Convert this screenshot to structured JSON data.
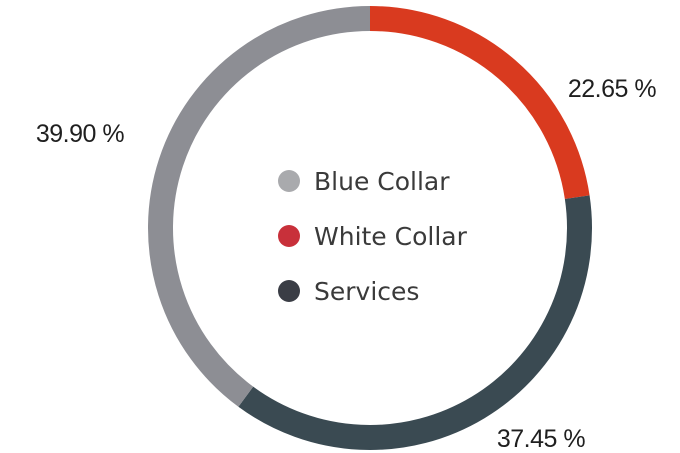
{
  "chart_data": {
    "type": "pie",
    "style": "donut",
    "legend_position": "center",
    "series": [
      {
        "name": "Blue Collar",
        "value": 39.9,
        "label": "39.90 %",
        "color": "#8d8e94"
      },
      {
        "name": "White Collar",
        "value": 22.65,
        "label": "22.65 %",
        "color": "#d93a1f"
      },
      {
        "name": "Services",
        "value": 37.45,
        "label": "37.45 %",
        "color": "#3a4a52"
      }
    ],
    "legend_marker_colors": [
      "#a9aaad",
      "#c8303a",
      "#3a3d45"
    ]
  }
}
